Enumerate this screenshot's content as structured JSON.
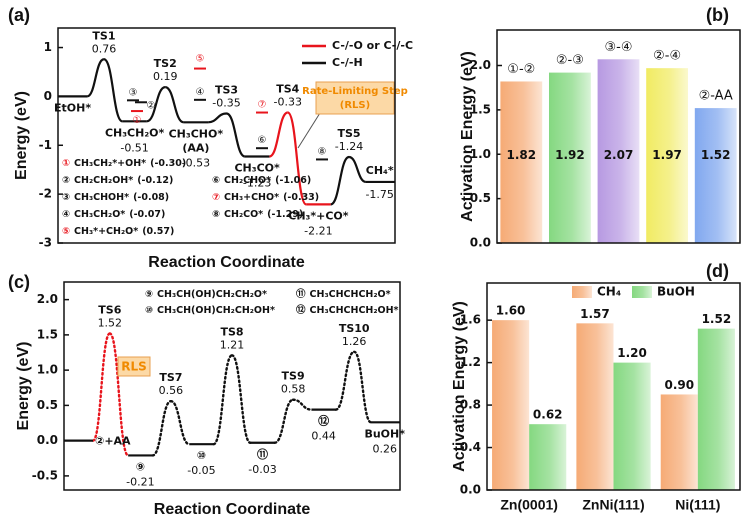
{
  "chart_data": [
    {
      "type": "profile",
      "panel_label": "(a)",
      "y_label": "Energy (eV)",
      "x_label": "Reaction Coordinate",
      "ylim": [
        -3,
        1.4
      ],
      "yticks": [
        -3,
        -2,
        -1,
        0,
        1
      ],
      "categories": [
        "EtOH*",
        "TS1",
        "CH₃CH₂O*",
        "TS2",
        "CH₃CHO*",
        "TS3",
        "CH₃CO*",
        "TS4",
        "CH₃*+CO*",
        "TS5",
        "CH₄*"
      ],
      "values": [
        0,
        0.76,
        -0.51,
        0.19,
        -0.53,
        -0.35,
        -1.23,
        -0.33,
        -2.21,
        -1.24,
        -1.75
      ],
      "value_labels": [
        null,
        "0.76",
        "-0.51",
        "0.19",
        "-0.53",
        "-0.35",
        "-1.23",
        "-0.33",
        "-2.21",
        "-1.24",
        "-1.75"
      ],
      "annotation": "(AA)",
      "segment_colors": [
        "#111111",
        "#111111",
        "#111111",
        "#111111",
        "#111111",
        "#111111",
        "#e8141c",
        "#e8141c",
        "#111111",
        "#111111"
      ],
      "line_style": "solid",
      "legend": [
        {
          "name": "C-/-O or C-/-C",
          "color": "#e8141c"
        },
        {
          "name": "C-/-H",
          "color": "#111111"
        }
      ],
      "rls_label": [
        "Rate-Limiting Step",
        "(RLS)"
      ],
      "intermediates": [
        {
          "symbol": "①",
          "label": "CH₃CH₂*+OH*",
          "value": -0.3,
          "value_label": "(-0.30)",
          "color": "#e8141c"
        },
        {
          "symbol": "②",
          "label": "CH₂CH₂OH*",
          "value": -0.12,
          "value_label": "(-0.12)",
          "color": "#111111"
        },
        {
          "symbol": "③",
          "label": "CH₃CHOH*",
          "value": -0.08,
          "value_label": "(-0.08)",
          "color": "#111111"
        },
        {
          "symbol": "④",
          "label": "CH₃CH₂O*",
          "value": -0.07,
          "value_label": "(-0.07)",
          "color": "#111111"
        },
        {
          "symbol": "⑤",
          "label": "CH₃*+CH₂O*",
          "value": 0.57,
          "value_label": "(0.57)",
          "color": "#e8141c"
        },
        {
          "symbol": "⑥",
          "label": "CH₂CHO*",
          "value": -1.06,
          "value_label": "(-1.06)",
          "color": "#111111"
        },
        {
          "symbol": "⑦",
          "label": "CH₃+CHO*",
          "value": -0.33,
          "value_label": "(-0.33)",
          "color": "#e8141c"
        },
        {
          "symbol": "⑧",
          "label": "CH₂CO*",
          "value": -1.29,
          "value_label": "(-1.29)",
          "color": "#111111"
        }
      ]
    },
    {
      "type": "bar",
      "panel_label": "(b)",
      "y_label": "Activation Energy (eV)",
      "ylim": [
        0,
        2.4
      ],
      "yticks": [
        {
          "value": 0,
          "label": "0.0"
        },
        0.5,
        {
          "value": 1,
          "label": "1.0"
        },
        1.5,
        {
          "value": 2,
          "label": "2.0"
        }
      ],
      "categories": [
        "①-②",
        "②-③",
        "③-④",
        "②-④",
        "②-AA"
      ],
      "values": [
        1.82,
        1.92,
        2.07,
        1.97,
        1.52
      ],
      "colors": [
        "#f5a66e",
        "#7ed67a",
        "#b394e0",
        "#f0ea5a",
        "#7aa3ee"
      ]
    },
    {
      "type": "profile",
      "panel_label": "(c)",
      "y_label": "Energy (eV)",
      "x_label": "Reaction Coordinate",
      "ylim": [
        -0.7,
        2.25
      ],
      "yticks": [
        -0.5,
        {
          "value": 0,
          "label": "0.0"
        },
        0.5,
        {
          "value": 1,
          "label": "1.0"
        },
        1.5,
        {
          "value": 2,
          "label": "2.0"
        }
      ],
      "categories": [
        "②+AA",
        "TS6",
        "⑨",
        "TS7",
        "⑩",
        "TS8",
        "⑪",
        "TS9",
        "⑫",
        "TS10",
        "BuOH*"
      ],
      "values": [
        0,
        1.52,
        -0.21,
        0.56,
        -0.05,
        1.21,
        -0.03,
        0.58,
        0.44,
        1.26,
        0.26
      ],
      "value_labels": [
        null,
        "1.52",
        "-0.21",
        "0.56",
        "-0.05",
        "1.21",
        "-0.03",
        "0.58",
        "0.44",
        "1.26",
        "0.26"
      ],
      "segment_colors": [
        "#e8141c",
        "#e8141c",
        "#111111",
        "#111111",
        "#111111",
        "#111111",
        "#111111",
        "#111111",
        "#111111",
        "#111111"
      ],
      "line_style": "dotted",
      "rls_label": [
        "RLS"
      ],
      "species": [
        {
          "symbol": "⑨",
          "label": "CH₃CH(OH)CH₂CH₂O*"
        },
        {
          "symbol": "⑩",
          "label": "CH₃CH(OH)CH₂CH₂OH*"
        },
        {
          "symbol": "⑪",
          "label": "CH₃CHCHCH₂O*"
        },
        {
          "symbol": "⑫",
          "label": "CH₃CHCHCH₂OH*"
        }
      ]
    },
    {
      "type": "bar",
      "panel_label": "(d)",
      "y_label": "Activation Energy (eV)",
      "ylim": [
        0,
        1.95
      ],
      "yticks": [
        {
          "value": 0,
          "label": "0.0"
        },
        0.4,
        0.8,
        1.2,
        1.6
      ],
      "categories": [
        "Zn(0001)",
        "ZnNi(111)",
        "Ni(111)"
      ],
      "series": [
        {
          "name": "CH₄",
          "color": "#f5a66e",
          "values": [
            1.6,
            1.57,
            0.9
          ],
          "value_labels": [
            "1.60",
            "1.57",
            "0.90"
          ]
        },
        {
          "name": "BuOH",
          "color": "#7ed67a",
          "values": [
            0.62,
            1.2,
            1.52
          ],
          "value_labels": [
            "0.62",
            "1.20",
            "1.52"
          ]
        }
      ]
    }
  ]
}
